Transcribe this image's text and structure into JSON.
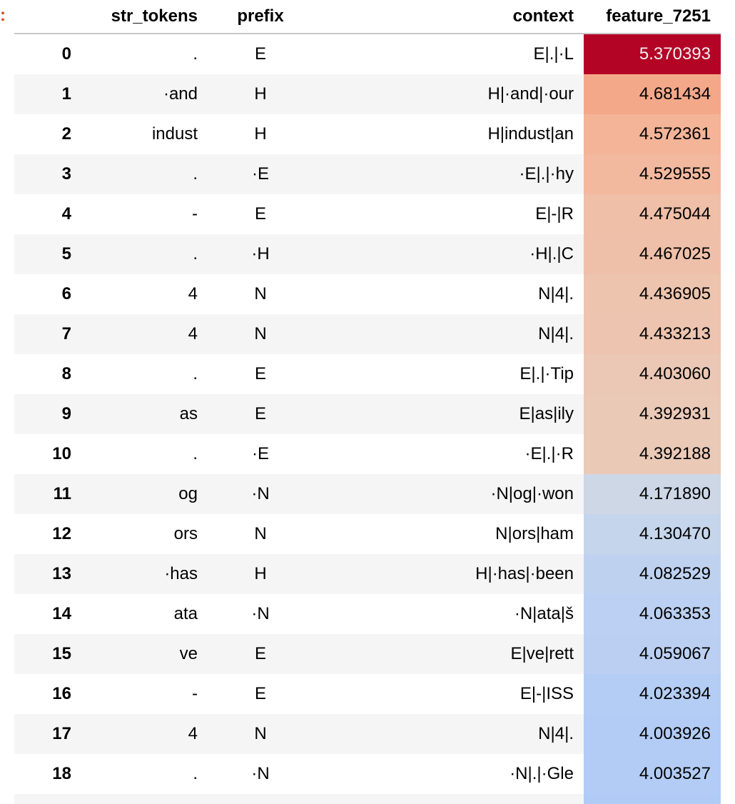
{
  "table": {
    "columns": [
      "",
      "str_tokens",
      "prefix",
      "context",
      "feature_7251"
    ],
    "rows": [
      {
        "index": "0",
        "str_tokens": ".",
        "prefix": "E",
        "context": "E|.|·L",
        "feature": "5.370393",
        "bg": "#b40426",
        "fg": "#f1f1f1"
      },
      {
        "index": "1",
        "str_tokens": "·and",
        "prefix": "H",
        "context": "H|·and|·our",
        "feature": "4.681434",
        "bg": "#f4a88a",
        "fg": "#000000"
      },
      {
        "index": "2",
        "str_tokens": "indust",
        "prefix": "H",
        "context": "H|indust|an",
        "feature": "4.572361",
        "bg": "#f3b497",
        "fg": "#000000"
      },
      {
        "index": "3",
        "str_tokens": ".",
        "prefix": "·E",
        "context": "·E|.|·hy",
        "feature": "4.529555",
        "bg": "#f2b99f",
        "fg": "#000000"
      },
      {
        "index": "4",
        "str_tokens": "-",
        "prefix": "E",
        "context": "E|-|R",
        "feature": "4.475044",
        "bg": "#efbfa8",
        "fg": "#000000"
      },
      {
        "index": "5",
        "str_tokens": ".",
        "prefix": "·H",
        "context": "·H|.|C",
        "feature": "4.467025",
        "bg": "#efc0a9",
        "fg": "#000000"
      },
      {
        "index": "6",
        "str_tokens": "4",
        "prefix": "N",
        "context": "N|4|.",
        "feature": "4.436905",
        "bg": "#edc4ae",
        "fg": "#000000"
      },
      {
        "index": "7",
        "str_tokens": "4",
        "prefix": "N",
        "context": "N|4|.",
        "feature": "4.433213",
        "bg": "#edc4af",
        "fg": "#000000"
      },
      {
        "index": "8",
        "str_tokens": ".",
        "prefix": "E",
        "context": "E|.|·Tip",
        "feature": "4.403060",
        "bg": "#ebc8b5",
        "fg": "#000000"
      },
      {
        "index": "9",
        "str_tokens": "as",
        "prefix": "E",
        "context": "E|as|ily",
        "feature": "4.392931",
        "bg": "#eac9b7",
        "fg": "#000000"
      },
      {
        "index": "10",
        "str_tokens": ".",
        "prefix": "·E",
        "context": "·E|.|·R",
        "feature": "4.392188",
        "bg": "#eac9b7",
        "fg": "#000000"
      },
      {
        "index": "11",
        "str_tokens": "og",
        "prefix": "·N",
        "context": "·N|og|·won",
        "feature": "4.171890",
        "bg": "#cdd7e6",
        "fg": "#000000"
      },
      {
        "index": "12",
        "str_tokens": "ors",
        "prefix": "N",
        "context": "N|ors|ham",
        "feature": "4.130470",
        "bg": "#c5d5eb",
        "fg": "#000000"
      },
      {
        "index": "13",
        "str_tokens": "·has",
        "prefix": "H",
        "context": "H|·has|·been",
        "feature": "4.082529",
        "bg": "#bed2f0",
        "fg": "#000000"
      },
      {
        "index": "14",
        "str_tokens": "ata",
        "prefix": "·N",
        "context": "·N|ata|š",
        "feature": "4.063353",
        "bg": "#bbd0f2",
        "fg": "#000000"
      },
      {
        "index": "15",
        "str_tokens": "ve",
        "prefix": "E",
        "context": "E|ve|rett",
        "feature": "4.059067",
        "bg": "#bacff2",
        "fg": "#000000"
      },
      {
        "index": "16",
        "str_tokens": "-",
        "prefix": "E",
        "context": "E|-|ISS",
        "feature": "4.023394",
        "bg": "#b4cdf4",
        "fg": "#000000"
      },
      {
        "index": "17",
        "str_tokens": "4",
        "prefix": "N",
        "context": "N|4|.",
        "feature": "4.003926",
        "bg": "#b2ccf5",
        "fg": "#000000"
      },
      {
        "index": "18",
        "str_tokens": ".",
        "prefix": "·N",
        "context": "·N|.|·Gle",
        "feature": "4.003527",
        "bg": "#b2ccf5",
        "fg": "#000000"
      }
    ],
    "partial_row_bg": "#b0cbf6"
  },
  "cell_prompt_marker": ":"
}
